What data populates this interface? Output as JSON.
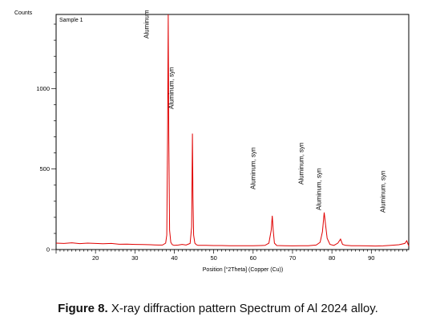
{
  "chart_data": {
    "type": "line",
    "sample_label": "Sample 1",
    "ylabel": "Counts",
    "xlabel": "Position [°2Theta] (Copper (Cu))",
    "xlim": [
      10,
      99.5
    ],
    "ylim": [
      0,
      1460
    ],
    "xticks": [
      20,
      30,
      40,
      50,
      60,
      70,
      80,
      90
    ],
    "yticks": [
      0,
      500,
      1000
    ],
    "grid": false,
    "series": [
      {
        "color": "#e00000",
        "x": [
          10,
          12,
          14,
          16,
          18,
          20,
          22,
          24,
          26,
          28,
          30,
          32,
          34,
          35,
          36,
          37,
          37.8,
          38.1,
          38.3,
          38.45,
          38.6,
          38.8,
          39.1,
          39.5,
          40,
          41,
          42,
          43,
          44,
          44.4,
          44.6,
          44.75,
          44.9,
          45.2,
          45.6,
          46,
          48,
          50,
          52,
          54,
          56,
          58,
          60,
          62,
          63,
          64,
          64.6,
          64.85,
          65.1,
          65.4,
          66,
          68,
          70,
          72,
          74,
          76,
          77,
          77.6,
          78.05,
          78.4,
          78.8,
          79.5,
          80.5,
          81.5,
          82.2,
          82.7,
          83.5,
          85,
          87,
          89,
          91,
          93,
          95,
          97,
          98.5,
          99,
          99.5
        ],
        "y": [
          40,
          38,
          42,
          37,
          40,
          38,
          36,
          38,
          33,
          34,
          32,
          31,
          30,
          29,
          28,
          28,
          40,
          90,
          700,
          1460,
          700,
          120,
          45,
          30,
          26,
          28,
          32,
          28,
          38,
          140,
          720,
          320,
          90,
          40,
          30,
          26,
          26,
          25,
          25,
          24,
          24,
          24,
          24,
          25,
          26,
          40,
          120,
          210,
          120,
          40,
          25,
          24,
          23,
          24,
          24,
          28,
          45,
          110,
          230,
          150,
          70,
          32,
          26,
          40,
          65,
          32,
          26,
          24,
          24,
          23,
          22,
          23,
          26,
          30,
          38,
          55,
          22
        ]
      }
    ],
    "annotations": [
      {
        "text": "Aluminum",
        "x": 33.5
      },
      {
        "text": "Aluminum, syn",
        "x": 39.8
      },
      {
        "text": "Aluminum, syn",
        "x": 60.5
      },
      {
        "text": "Aluminum, syn",
        "x": 72.8
      },
      {
        "text": "Aluminum, syn",
        "x": 77.2
      },
      {
        "text": "Aluminum, syn",
        "x": 93.5
      }
    ]
  },
  "caption": {
    "label": "Figure 8.",
    "text": " X-ray diffraction pattern Spectrum of Al 2024 alloy."
  }
}
